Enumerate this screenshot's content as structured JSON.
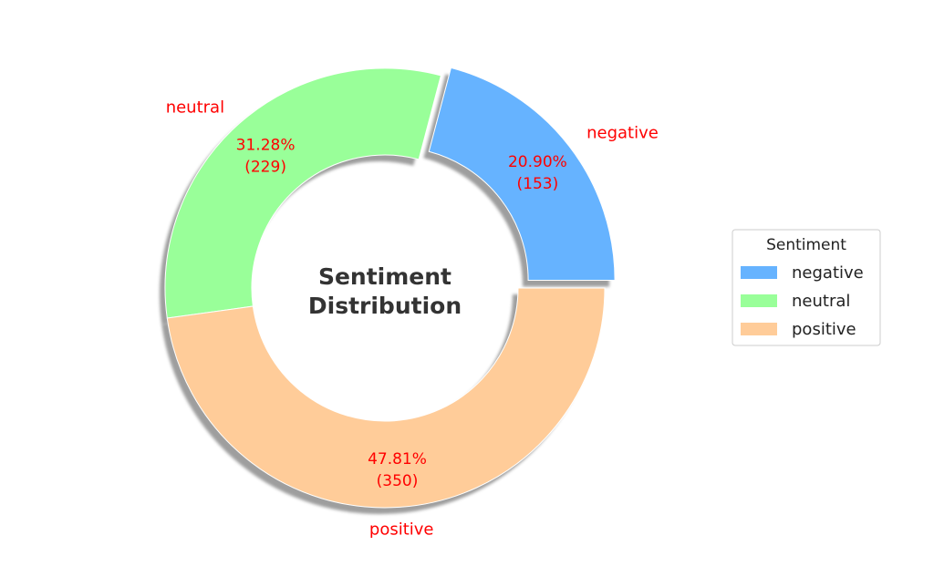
{
  "chart_data": {
    "type": "pie",
    "variant": "donut",
    "center_title": [
      "Sentiment",
      "Distribution"
    ],
    "slices": [
      {
        "label": "negative",
        "value": 153,
        "percent": "20.90%",
        "count_label": "(153)",
        "color": "#66b3ff",
        "exploded": true
      },
      {
        "label": "neutral",
        "value": 229,
        "percent": "31.28%",
        "count_label": "(229)",
        "color": "#99ff99",
        "exploded": false
      },
      {
        "label": "positive",
        "value": 350,
        "percent": "47.81%",
        "count_label": "(350)",
        "color": "#ffcc99",
        "exploded": false
      }
    ],
    "start_angle_deg": 0,
    "direction": "counterclockwise",
    "shadow": true,
    "label_color": "#ff0000",
    "legend": {
      "title": "Sentiment",
      "placement": "right",
      "entries": [
        "negative",
        "neutral",
        "positive"
      ]
    }
  }
}
